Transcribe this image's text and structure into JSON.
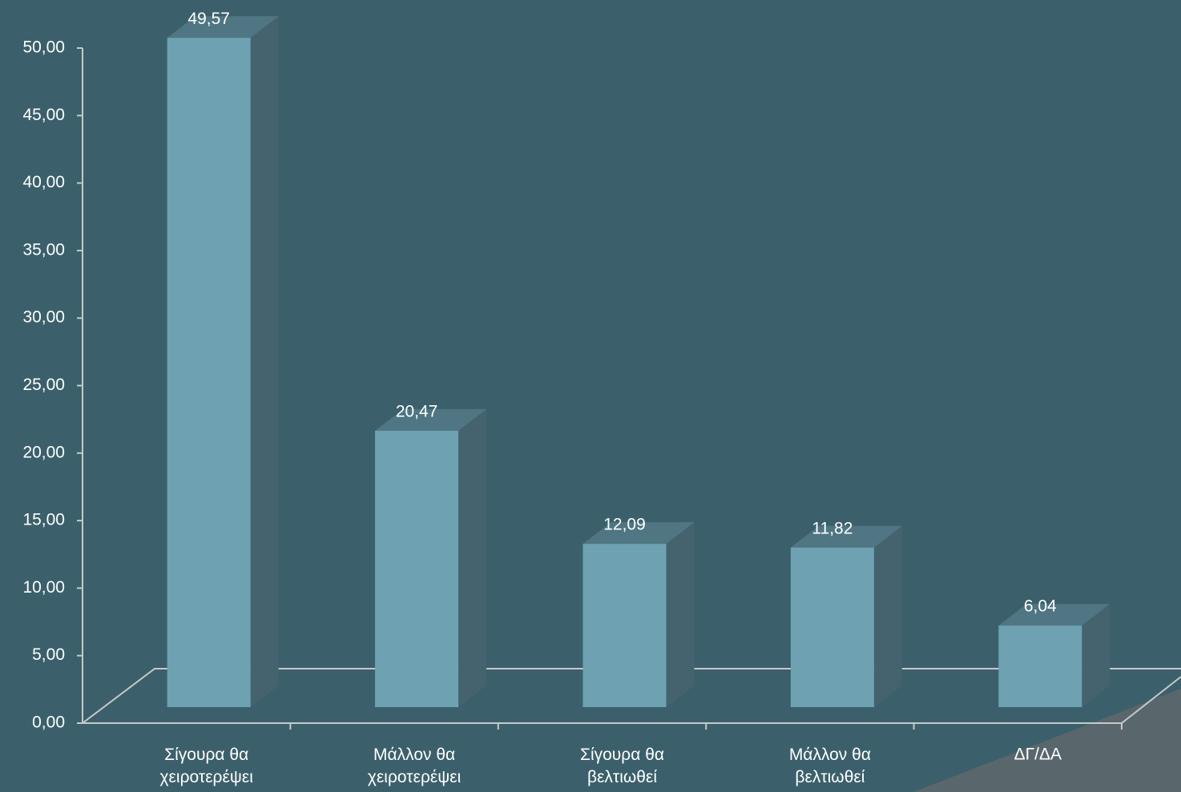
{
  "chart_data": {
    "type": "bar3d",
    "categories": [
      "Σίγουρα θα χειροτερέψει",
      "Μάλλον θα χειροτερέψει",
      "Σίγουρα θα βελτιωθεί",
      "Μάλλον θα βελτιωθεί",
      "ΔΓ/ΔΑ"
    ],
    "values": [
      49.57,
      20.47,
      12.09,
      11.82,
      6.04
    ],
    "value_labels": [
      "49,57",
      "20,47",
      "12,09",
      "11,82",
      "6,04"
    ],
    "color": "#6ea2b3",
    "ylim": [
      0,
      50
    ],
    "yticks": [
      {
        "value": 0,
        "label": "0,00"
      },
      {
        "value": 5,
        "label": "5,00"
      },
      {
        "value": 10,
        "label": "10,00"
      },
      {
        "value": 15,
        "label": "15,00"
      },
      {
        "value": 20,
        "label": "20,00"
      },
      {
        "value": 25,
        "label": "25,00"
      },
      {
        "value": 30,
        "label": "30,00"
      },
      {
        "value": 35,
        "label": "35,00"
      },
      {
        "value": 40,
        "label": "40,00"
      },
      {
        "value": 45,
        "label": "45,00"
      },
      {
        "value": 50,
        "label": "50,00"
      }
    ]
  }
}
